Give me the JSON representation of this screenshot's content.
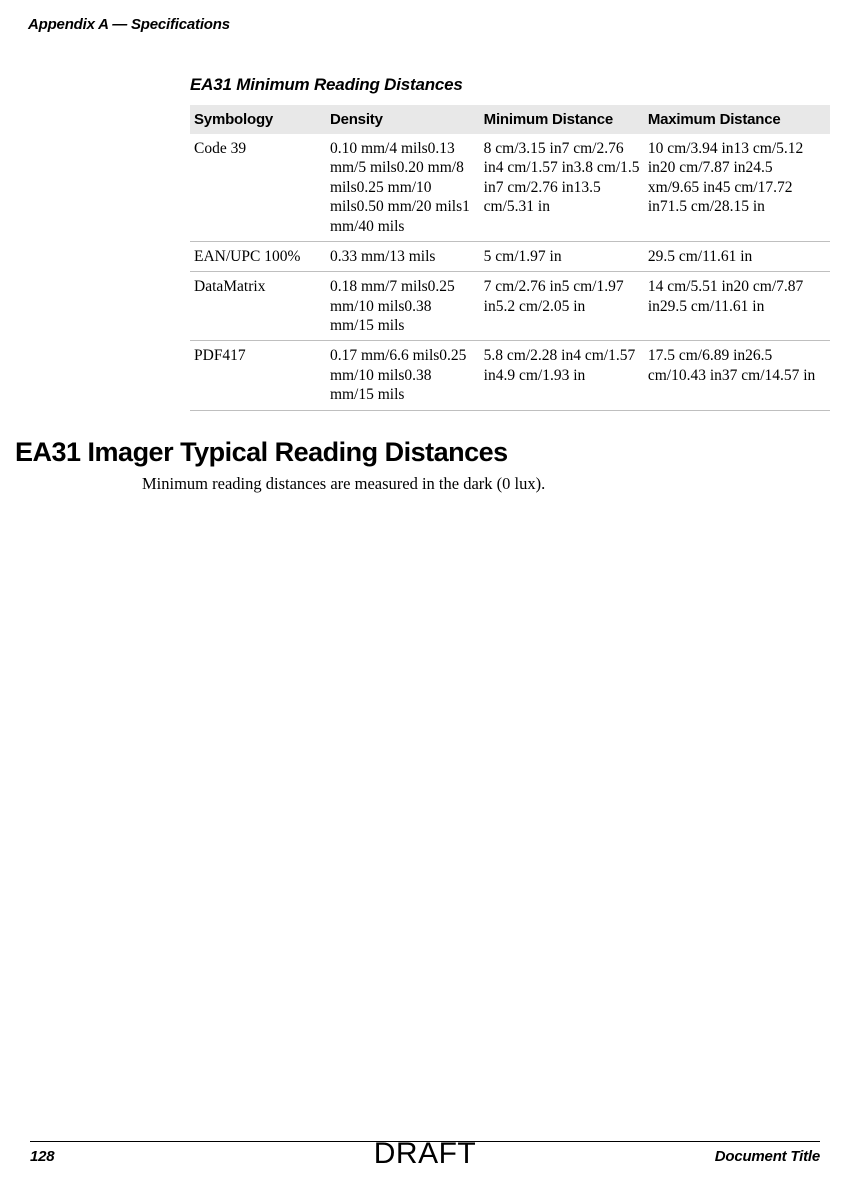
{
  "header": {
    "runningTitle": "Appendix A — Specifications"
  },
  "table": {
    "caption": "EA31 Minimum Reading Distances",
    "columns": [
      "Symbology",
      "Density",
      "Minimum Distance",
      "Maximum Distance"
    ],
    "rows": [
      {
        "symbology": "Code 39",
        "density": "0.10 mm/4 mils0.13 mm/5 mils0.20 mm/8 mils0.25 mm/10 mils0.50 mm/20 mils1 mm/40 mils",
        "min": "8 cm/3.15 in7 cm/2.76 in4 cm/1.57 in3.8 cm/1.5 in7 cm/2.76 in13.5 cm/5.31 in",
        "max": "10 cm/3.94 in13 cm/5.12 in20 cm/7.87 in24.5 xm/9.65 in45 cm/17.72 in71.5 cm/28.15 in"
      },
      {
        "symbology": "EAN/UPC 100%",
        "density": "0.33 mm/13 mils",
        "min": "5 cm/1.97 in",
        "max": "29.5 cm/11.61 in"
      },
      {
        "symbology": "DataMatrix",
        "density": "0.18 mm/7 mils0.25 mm/10 mils0.38 mm/15 mils",
        "min": "7 cm/2.76 in5 cm/1.97 in5.2 cm/2.05 in",
        "max": "14 cm/5.51 in20 cm/7.87 in29.5 cm/11.61 in"
      },
      {
        "symbology": "PDF417",
        "density": "0.17 mm/6.6 mils0.25 mm/10 mils0.38 mm/15 mils",
        "min": "5.8 cm/2.28 in4 cm/1.57 in4.9 cm/1.93 in",
        "max": "17.5 cm/6.89 in26.5 cm/10.43 in37 cm/14.57 in"
      }
    ]
  },
  "section": {
    "heading": "EA31 Imager Typical Reading Distances",
    "body": "Minimum reading distances are measured in the dark (0 lux)."
  },
  "footer": {
    "pageNumber": "128",
    "docTitle": "Document Title",
    "watermark": "DRAFT"
  }
}
